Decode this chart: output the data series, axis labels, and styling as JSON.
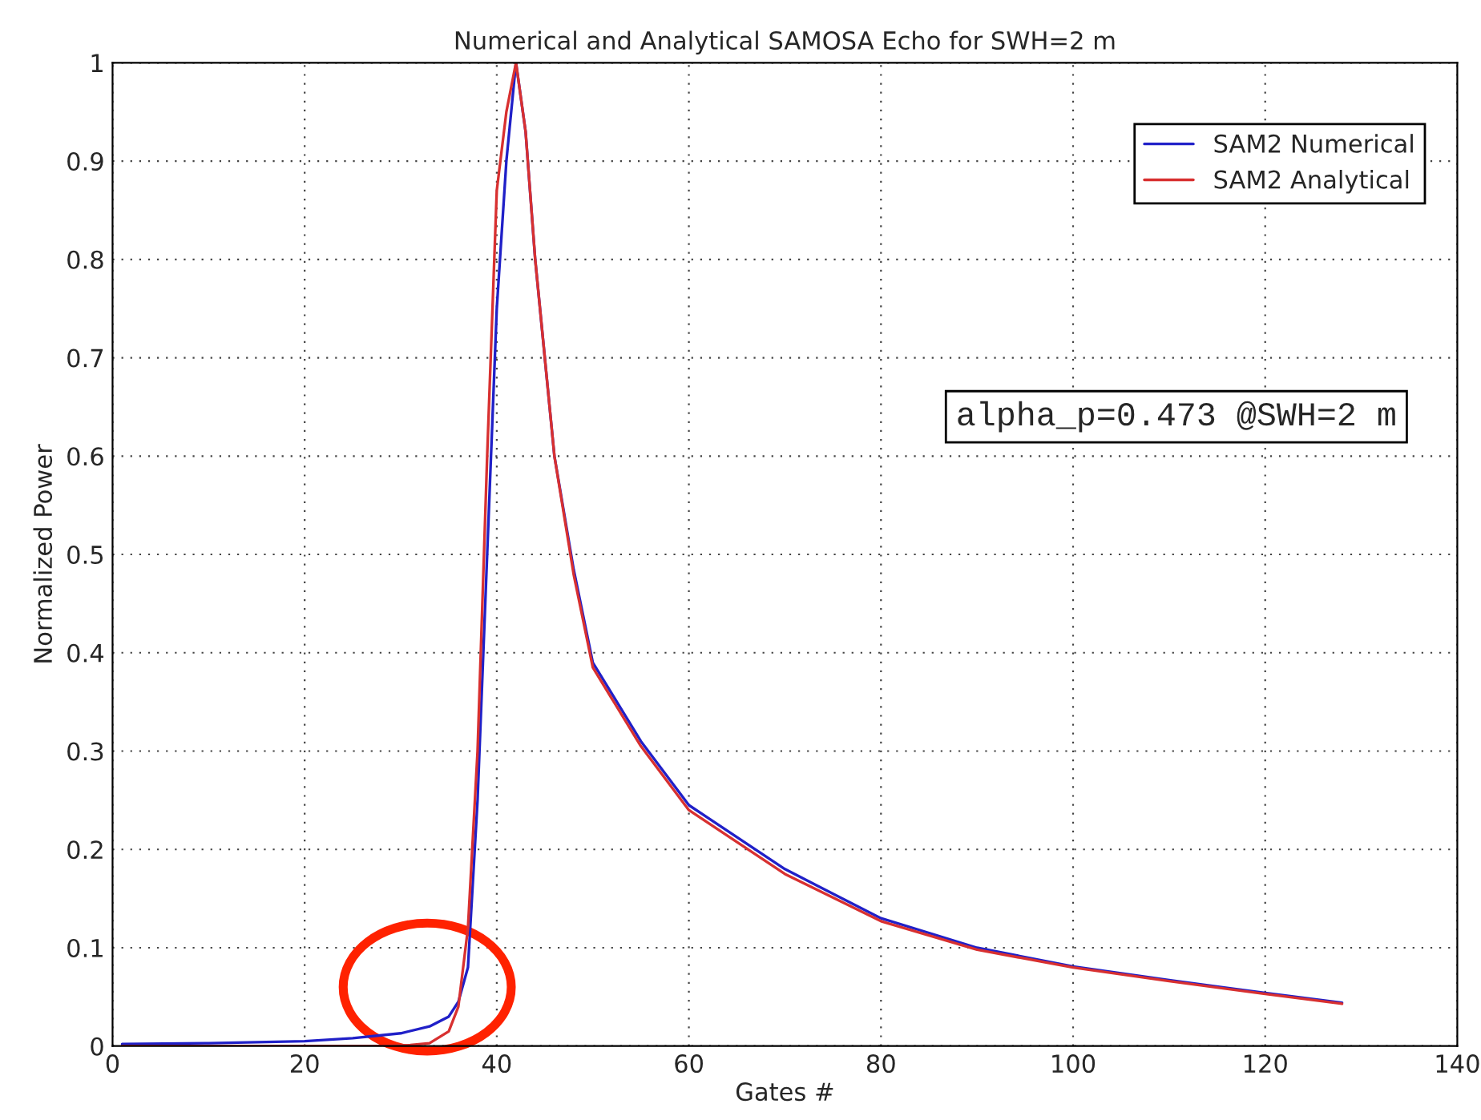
{
  "chart_data": {
    "type": "line",
    "title": "Numerical and Analytical SAMOSA Echo for SWH=2 m",
    "xlabel": "Gates #",
    "ylabel": "Normalized Power",
    "series": [
      {
        "name": "SAM2 Numerical",
        "color": "#2020c8",
        "x": [
          1,
          10,
          20,
          25,
          30,
          33,
          35,
          36,
          37,
          38,
          39,
          40,
          41,
          42,
          43,
          44,
          45,
          46,
          48,
          50,
          55,
          60,
          70,
          80,
          90,
          100,
          110,
          120,
          128
        ],
        "values": [
          0.002,
          0.003,
          0.005,
          0.008,
          0.013,
          0.02,
          0.03,
          0.045,
          0.08,
          0.25,
          0.5,
          0.75,
          0.9,
          1.0,
          0.93,
          0.8,
          0.7,
          0.6,
          0.485,
          0.39,
          0.31,
          0.245,
          0.18,
          0.13,
          0.1,
          0.081,
          0.067,
          0.054,
          0.044
        ]
      },
      {
        "name": "SAM2 Analytical",
        "color": "#d83030",
        "x": [
          1,
          20,
          28,
          31,
          33,
          35,
          36,
          37,
          38,
          39,
          40,
          41,
          42,
          43,
          44,
          45,
          46,
          48,
          50,
          55,
          60,
          70,
          80,
          90,
          100,
          110,
          120,
          128
        ],
        "values": [
          0.0,
          0.0,
          0.0,
          0.001,
          0.003,
          0.015,
          0.04,
          0.12,
          0.3,
          0.6,
          0.87,
          0.95,
          1.0,
          0.93,
          0.8,
          0.7,
          0.6,
          0.48,
          0.385,
          0.305,
          0.24,
          0.175,
          0.127,
          0.098,
          0.08,
          0.066,
          0.053,
          0.043
        ]
      }
    ],
    "xlim": [
      0,
      140
    ],
    "xticks": [
      0,
      20,
      40,
      60,
      80,
      100,
      120,
      140
    ],
    "ylim": [
      0,
      1
    ],
    "yticks": [
      0,
      0.1,
      0.2,
      0.3,
      0.4,
      0.5,
      0.6,
      0.7,
      0.8,
      0.9,
      1
    ],
    "grid": true,
    "legend": "top right",
    "annotations": [
      "alpha_p=0.473 @SWH=2 m"
    ]
  }
}
